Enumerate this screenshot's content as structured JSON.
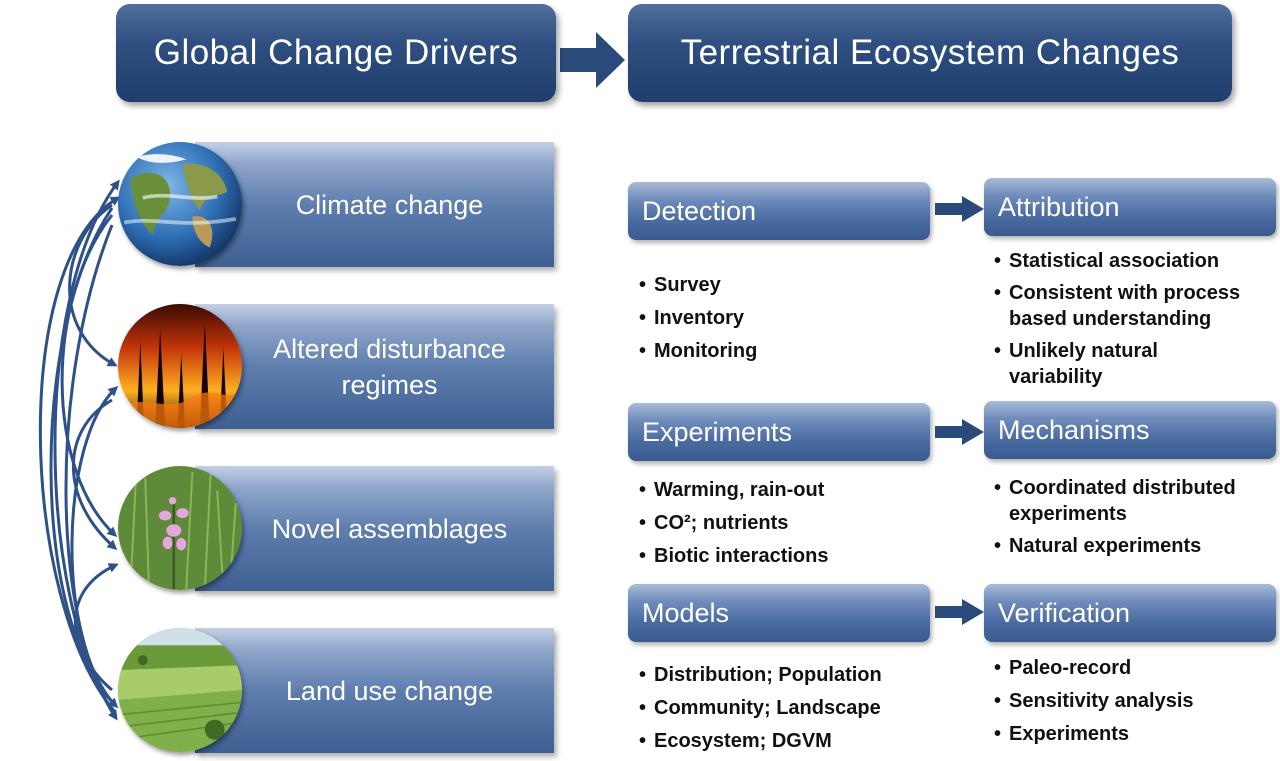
{
  "header": {
    "left_title": "Global Change Drivers",
    "right_title": "Terrestrial Ecosystem Changes"
  },
  "drivers": [
    {
      "label": "Climate change",
      "icon": "globe-icon"
    },
    {
      "label": "Altered disturbance regimes",
      "icon": "wildfire-icon"
    },
    {
      "label": "Novel assemblages",
      "icon": "wildflower-icon"
    },
    {
      "label": "Land use change",
      "icon": "farmland-icon"
    }
  ],
  "rows": [
    {
      "left": {
        "title": "Detection",
        "items": [
          "Survey",
          "Inventory",
          "Monitoring"
        ]
      },
      "right": {
        "title": "Attribution",
        "items": [
          "Statistical association",
          "Consistent with process based understanding",
          "Unlikely natural variability"
        ]
      }
    },
    {
      "left": {
        "title": "Experiments",
        "items": [
          "Warming, rain-out",
          "CO²; nutrients",
          "Biotic interactions"
        ]
      },
      "right": {
        "title": "Mechanisms",
        "items": [
          "Coordinated distributed experiments",
          "Natural experiments"
        ]
      }
    },
    {
      "left": {
        "title": "Models",
        "items": [
          "Distribution; Population",
          "Community; Landscape",
          "Ecosystem; DGVM"
        ]
      },
      "right": {
        "title": "Verification",
        "items": [
          "Paleo-record",
          "Sensitivity analysis",
          "Experiments"
        ]
      }
    }
  ],
  "colors": {
    "header_navy": "#1f3e6c",
    "panel_blue": "#4a6ca1",
    "arrow_blue": "#2e4f80"
  }
}
